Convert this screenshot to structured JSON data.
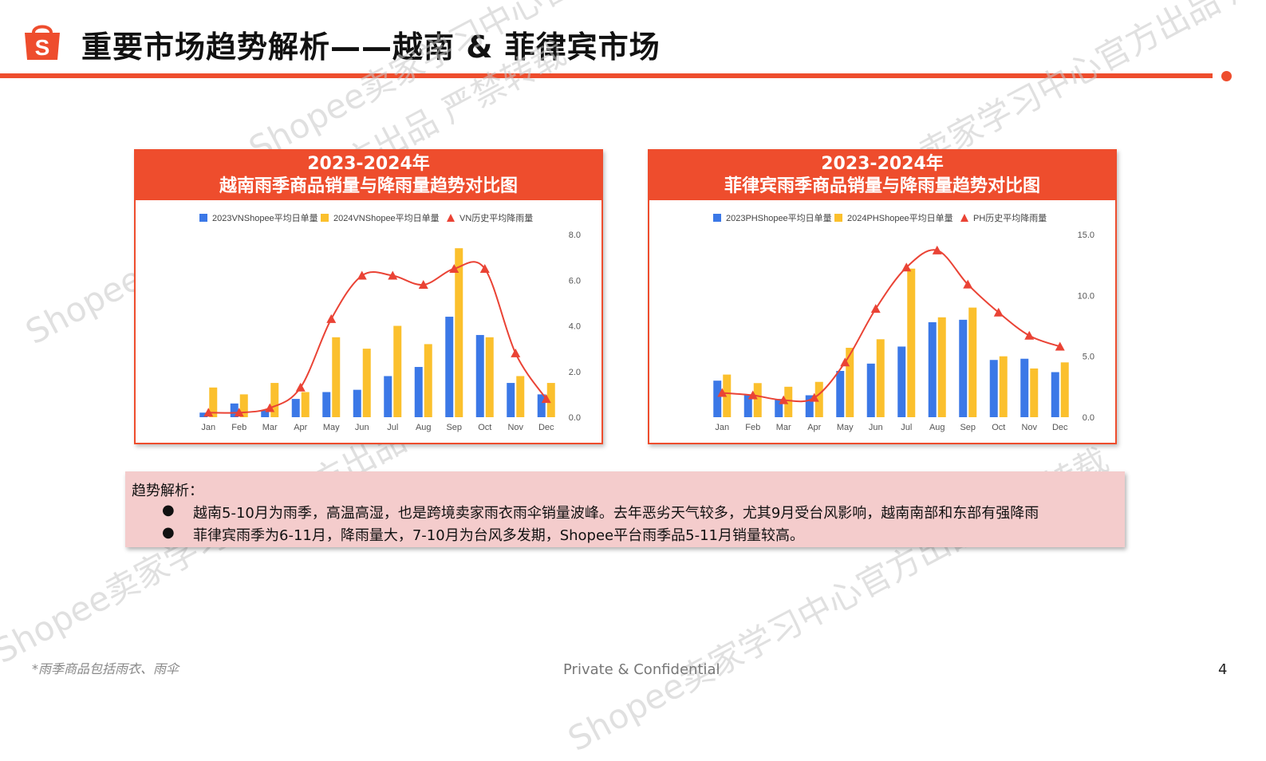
{
  "header": {
    "title": "重要市场趋势解析——越南 & 菲律宾市场",
    "logo_letter": "S",
    "brand_color": "#ee4d2d"
  },
  "watermark_texts": [
    "Shopee卖家学习中心官方出品 严禁转载"
  ],
  "panels": [
    {
      "title_line1": "2023-2024年",
      "title_line2": "越南雨季商品销量与降雨量趋势对比图"
    },
    {
      "title_line1": "2023-2024年",
      "title_line2": "菲律宾雨季商品销量与降雨量趋势对比图"
    }
  ],
  "chart_data": [
    {
      "type": "bar",
      "categories": [
        "Jan",
        "Feb",
        "Mar",
        "Apr",
        "May",
        "Jun",
        "Jul",
        "Aug",
        "Sep",
        "Oct",
        "Nov",
        "Dec"
      ],
      "series": [
        {
          "name": "2023VNShopee平均日单量",
          "kind": "bar",
          "color": "#3b78e7",
          "values": [
            0.2,
            0.6,
            0.3,
            0.8,
            1.1,
            1.2,
            1.8,
            2.2,
            4.4,
            3.6,
            1.5,
            1.0
          ]
        },
        {
          "name": "2024VNShopee平均日单量",
          "kind": "bar",
          "color": "#fbc02d",
          "values": [
            1.3,
            1.0,
            1.5,
            1.1,
            3.5,
            3.0,
            4.0,
            3.2,
            7.4,
            3.5,
            1.8,
            1.5
          ]
        },
        {
          "name": "VN历史平均降雨量",
          "kind": "line",
          "color": "#ea4335",
          "values": [
            0.2,
            0.2,
            0.4,
            1.3,
            4.3,
            6.2,
            6.2,
            5.8,
            6.5,
            6.5,
            2.8,
            0.8
          ]
        }
      ],
      "ylim": [
        0,
        8
      ],
      "yticks": [
        "0.0",
        "2.0",
        "4.0",
        "6.0",
        "8.0"
      ],
      "ytick_values": [
        0,
        2,
        4,
        6,
        8
      ],
      "legend_position": "top"
    },
    {
      "type": "bar",
      "categories": [
        "Jan",
        "Feb",
        "Mar",
        "Apr",
        "May",
        "Jun",
        "Jul",
        "Aug",
        "Sep",
        "Oct",
        "Nov",
        "Dec"
      ],
      "series": [
        {
          "name": "2023PHShopee平均日单量",
          "kind": "bar",
          "color": "#3b78e7",
          "values": [
            3.0,
            1.8,
            1.5,
            1.8,
            3.8,
            4.4,
            5.8,
            7.8,
            8.0,
            4.7,
            4.8,
            3.7
          ]
        },
        {
          "name": "2024PHShopee平均日单量",
          "kind": "bar",
          "color": "#fbc02d",
          "values": [
            3.5,
            2.8,
            2.5,
            2.9,
            5.7,
            6.4,
            12.2,
            8.2,
            9.0,
            5.0,
            4.0,
            4.5
          ]
        },
        {
          "name": "PH历史平均降雨量",
          "kind": "line",
          "color": "#ea4335",
          "values": [
            2.0,
            1.8,
            1.4,
            1.6,
            4.5,
            8.9,
            12.3,
            13.7,
            10.9,
            8.6,
            6.7,
            5.8
          ]
        }
      ],
      "ylim": [
        0,
        15
      ],
      "yticks": [
        "0.0",
        "5.0",
        "10.0",
        "15.0"
      ],
      "ytick_values": [
        0,
        5,
        10,
        15
      ],
      "legend_position": "top"
    }
  ],
  "analysis": {
    "heading": "趋势解析：",
    "bullet_glyph": "●",
    "points": [
      "越南5-10月为雨季，高温高湿，也是跨境卖家雨衣雨伞销量波峰。去年恶劣天气较多，尤其9月受台风影响，越南南部和东部有强降雨",
      "菲律宾雨季为6-11月，降雨量大，7-10月为台风多发期，Shopee平台雨季品5-11月销量较高。"
    ]
  },
  "footer": {
    "footnote": "*雨季商品包括雨衣、雨伞",
    "confidential": "Private & Confidential",
    "page_number": "4"
  }
}
